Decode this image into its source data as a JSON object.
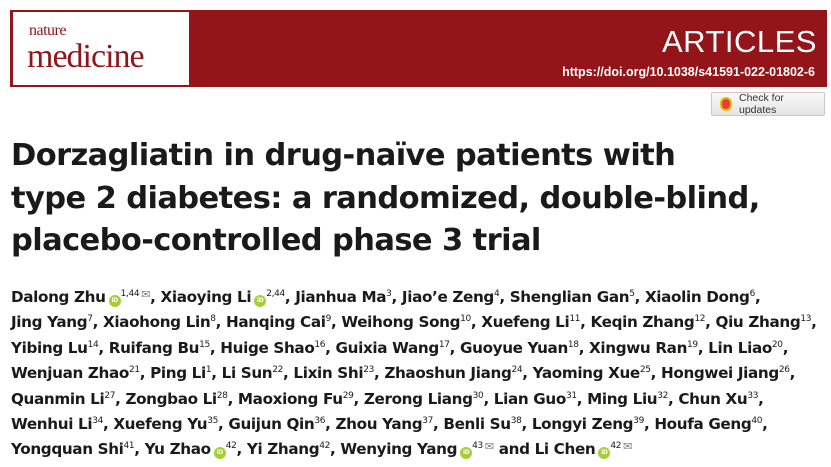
{
  "header": {
    "journal_line1": "nature",
    "journal_line2": "medicine",
    "section": "ARTICLES",
    "doi": "https://doi.org/10.1038/s41591-022-01802-6",
    "check_updates": "Check for updates",
    "brand_color": "#931519"
  },
  "title_lines": [
    "Dorzagliatin in drug-naïve patients with",
    "type 2 diabetes: a randomized, double-blind,",
    "placebo-controlled phase 3 trial"
  ],
  "author_lines": [
    [
      {
        "name": "Dalong Zhu",
        "orcid": true,
        "sup": "1,44",
        "email": true
      },
      {
        "name": "Xiaoying Li",
        "orcid": true,
        "sup": "2,44"
      },
      {
        "name": "Jianhua Ma",
        "sup": "3"
      },
      {
        "name": "Jiao’e Zeng",
        "sup": "4"
      },
      {
        "name": "Shenglian Gan",
        "sup": "5"
      },
      {
        "name": "Xiaolin Dong",
        "sup": "6"
      }
    ],
    [
      {
        "name": "Jing Yang",
        "sup": "7"
      },
      {
        "name": "Xiaohong Lin",
        "sup": "8"
      },
      {
        "name": "Hanqing Cai",
        "sup": "9"
      },
      {
        "name": "Weihong Song",
        "sup": "10"
      },
      {
        "name": "Xuefeng Li",
        "sup": "11"
      },
      {
        "name": "Keqin Zhang",
        "sup": "12"
      },
      {
        "name": "Qiu Zhang",
        "sup": "13"
      }
    ],
    [
      {
        "name": "Yibing Lu",
        "sup": "14"
      },
      {
        "name": "Ruifang Bu",
        "sup": "15"
      },
      {
        "name": "Huige Shao",
        "sup": "16"
      },
      {
        "name": "Guixia Wang",
        "sup": "17"
      },
      {
        "name": "Guoyue Yuan",
        "sup": "18"
      },
      {
        "name": "Xingwu Ran",
        "sup": "19"
      },
      {
        "name": "Lin Liao",
        "sup": "20"
      }
    ],
    [
      {
        "name": "Wenjuan Zhao",
        "sup": "21"
      },
      {
        "name": "Ping Li",
        "sup": "1"
      },
      {
        "name": "Li Sun",
        "sup": "22"
      },
      {
        "name": "Lixin Shi",
        "sup": "23"
      },
      {
        "name": "Zhaoshun Jiang",
        "sup": "24"
      },
      {
        "name": "Yaoming Xue",
        "sup": "25"
      },
      {
        "name": "Hongwei Jiang",
        "sup": "26"
      }
    ],
    [
      {
        "name": "Quanmin Li",
        "sup": "27"
      },
      {
        "name": "Zongbao Li",
        "sup": "28"
      },
      {
        "name": "Maoxiong Fu",
        "sup": "29"
      },
      {
        "name": "Zerong Liang",
        "sup": "30"
      },
      {
        "name": "Lian Guo",
        "sup": "31"
      },
      {
        "name": "Ming Liu",
        "sup": "32"
      },
      {
        "name": "Chun Xu",
        "sup": "33"
      }
    ],
    [
      {
        "name": "Wenhui Li",
        "sup": "34"
      },
      {
        "name": "Xuefeng Yu",
        "sup": "35"
      },
      {
        "name": "Guijun Qin",
        "sup": "36"
      },
      {
        "name": "Zhou Yang",
        "sup": "37"
      },
      {
        "name": "Benli Su",
        "sup": "38"
      },
      {
        "name": "Longyi Zeng",
        "sup": "39"
      },
      {
        "name": "Houfa Geng",
        "sup": "40"
      }
    ],
    [
      {
        "name": "Yongquan Shi",
        "sup": "41"
      },
      {
        "name": "Yu Zhao",
        "orcid": true,
        "sup": "42"
      },
      {
        "name": "Yi Zhang",
        "sup": "42"
      },
      {
        "name": "Wenying Yang",
        "orcid": true,
        "sup": "43",
        "email": true
      },
      {
        "name": "Li Chen",
        "orcid": true,
        "sup": "42",
        "email": true
      }
    ]
  ],
  "separator": ", ",
  "last_separator": " and ",
  "orcid_label": "iD",
  "email_glyph": "✉"
}
